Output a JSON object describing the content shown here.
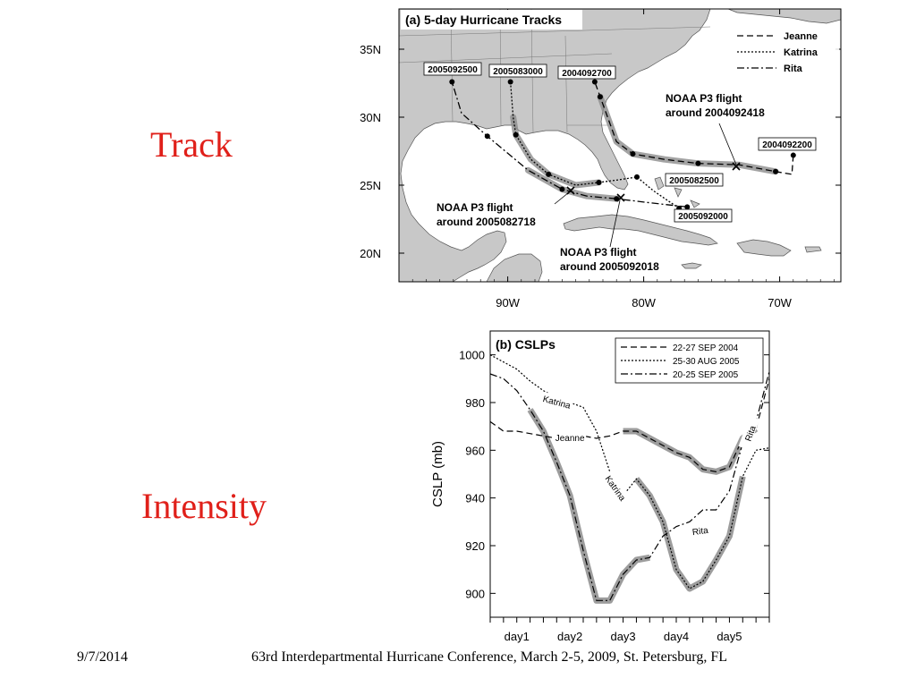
{
  "slide": {
    "track_label": "Track",
    "intensity_label": "Intensity",
    "footer_date": "9/7/2014",
    "footer_text": "63rd Interdepartmental Hurricane Conference, March 2-5, 2009, St. Petersburg, FL"
  },
  "colors": {
    "accent_red": "#e0201a",
    "land": "#c8c8c8",
    "highlight": "#8c8c8c"
  },
  "map": {
    "panel_title": "(a) 5-day Hurricane Tracks",
    "lat_labels": [
      "35N",
      "30N",
      "25N",
      "20N"
    ],
    "lat_values": [
      35,
      30,
      25,
      20
    ],
    "lon_labels": [
      "90W",
      "80W",
      "70W"
    ],
    "lon_values": [
      -90,
      -80,
      -70
    ],
    "legend": [
      {
        "name": "Jeanne",
        "style": "dashed"
      },
      {
        "name": "Katrina",
        "style": "dotted"
      },
      {
        "name": "Rita",
        "style": "dash-dot"
      }
    ],
    "tracks": {
      "jeanne": [
        [
          -69.0,
          27.2
        ],
        [
          -69.1,
          25.8
        ],
        [
          -70.3,
          26.0
        ],
        [
          -73.0,
          26.5
        ],
        [
          -76.0,
          26.6
        ],
        [
          -78.5,
          26.9
        ],
        [
          -80.8,
          27.3
        ],
        [
          -82.0,
          28.2
        ],
        [
          -83.2,
          31.5
        ],
        [
          -83.6,
          32.6
        ]
      ],
      "katrina": [
        [
          -77.4,
          23.3
        ],
        [
          -79.3,
          24.6
        ],
        [
          -80.5,
          25.6
        ],
        [
          -81.8,
          25.4
        ],
        [
          -83.3,
          25.2
        ],
        [
          -85.0,
          25.0
        ],
        [
          -87.0,
          25.8
        ],
        [
          -88.3,
          26.9
        ],
        [
          -89.4,
          28.7
        ],
        [
          -89.6,
          30.0
        ],
        [
          -89.8,
          32.6
        ]
      ],
      "rita": [
        [
          -76.8,
          23.4
        ],
        [
          -79.5,
          23.7
        ],
        [
          -82.0,
          24.0
        ],
        [
          -84.2,
          24.2
        ],
        [
          -86.0,
          24.7
        ],
        [
          -88.5,
          26.1
        ],
        [
          -91.5,
          28.6
        ],
        [
          -93.4,
          30.3
        ],
        [
          -94.1,
          32.6
        ]
      ]
    },
    "date_boxes": [
      "2005092500",
      "2005083000",
      "2004092700",
      "2004092200",
      "2005082500",
      "2005092000"
    ],
    "annotations": [
      {
        "line1": "NOAA P3 flight",
        "line2": "around 2004092418"
      },
      {
        "line1": "NOAA P3 flight",
        "line2": "around 2005082718"
      },
      {
        "line1": "NOAA P3 flight",
        "line2": "around 2005092018"
      }
    ]
  },
  "chart_data": {
    "type": "line",
    "title": "(b) CSLPs",
    "ylabel": "CSLP (mb)",
    "xlabel": "",
    "ylim": [
      890,
      1010
    ],
    "xlim": [
      0,
      5.25
    ],
    "yticks": [
      900,
      920,
      940,
      960,
      980,
      1000
    ],
    "xtick_labels": [
      "day1",
      "day2",
      "day3",
      "day4",
      "day5"
    ],
    "xtick_positions": [
      0.5,
      1.5,
      2.5,
      3.5,
      4.5
    ],
    "grid": false,
    "legend_position": "top-right",
    "series": [
      {
        "legend": "22-27 SEP 2004",
        "label": "Jeanne",
        "style": "dashed",
        "x": [
          0,
          0.25,
          0.5,
          0.75,
          1,
          1.25,
          1.5,
          1.75,
          2,
          2.25,
          2.5,
          2.75,
          3,
          3.25,
          3.5,
          3.75,
          4,
          4.25,
          4.5,
          4.75,
          5,
          5.25
        ],
        "y": [
          972,
          968,
          968,
          967,
          966,
          965,
          965,
          966,
          965,
          966,
          968,
          968,
          965,
          962,
          959,
          957,
          952,
          951,
          953,
          965,
          969,
          990
        ],
        "highlight": [
          10,
          20
        ]
      },
      {
        "legend": "25-30 AUG 2005",
        "label": "Katrina",
        "style": "dotted",
        "x": [
          0,
          0.25,
          0.5,
          0.75,
          1,
          1.25,
          1.5,
          1.75,
          2,
          2.25,
          2.5,
          2.75,
          3,
          3.25,
          3.5,
          3.75,
          4,
          4.25,
          4.5,
          4.75,
          5,
          5.25
        ],
        "y": [
          1000,
          997,
          994,
          989,
          985,
          982,
          980,
          978,
          968,
          951,
          941,
          948,
          941,
          930,
          910,
          902,
          905,
          914,
          924,
          949,
          960,
          961
        ],
        "highlight": [
          11,
          19
        ]
      },
      {
        "legend": "20-25 SEP 2005",
        "label": "Rita",
        "style": "dash-dot",
        "x": [
          0,
          0.25,
          0.5,
          0.75,
          1,
          1.25,
          1.5,
          1.75,
          2,
          2.25,
          2.5,
          2.75,
          3,
          3.25,
          3.5,
          3.75,
          4,
          4.25,
          4.5,
          4.75,
          5,
          5.25
        ],
        "y": [
          992,
          990,
          985,
          977,
          968,
          955,
          941,
          918,
          897,
          897,
          908,
          914,
          915,
          924,
          928,
          930,
          935,
          935,
          943,
          963,
          972,
          993
        ],
        "highlight": [
          3,
          12
        ]
      }
    ],
    "curve_labels": [
      {
        "text": "Katrina",
        "x": 1.25,
        "y": 980,
        "rotate": 15
      },
      {
        "text": "Jeanne",
        "x": 1.5,
        "y": 965,
        "rotate": 0
      },
      {
        "text": "Katrina",
        "x": 2.35,
        "y": 944,
        "rotate": 55
      },
      {
        "text": "Rita",
        "x": 3.95,
        "y": 926,
        "rotate": -8
      },
      {
        "text": "Rita",
        "x": 4.9,
        "y": 967,
        "rotate": -70
      }
    ]
  }
}
